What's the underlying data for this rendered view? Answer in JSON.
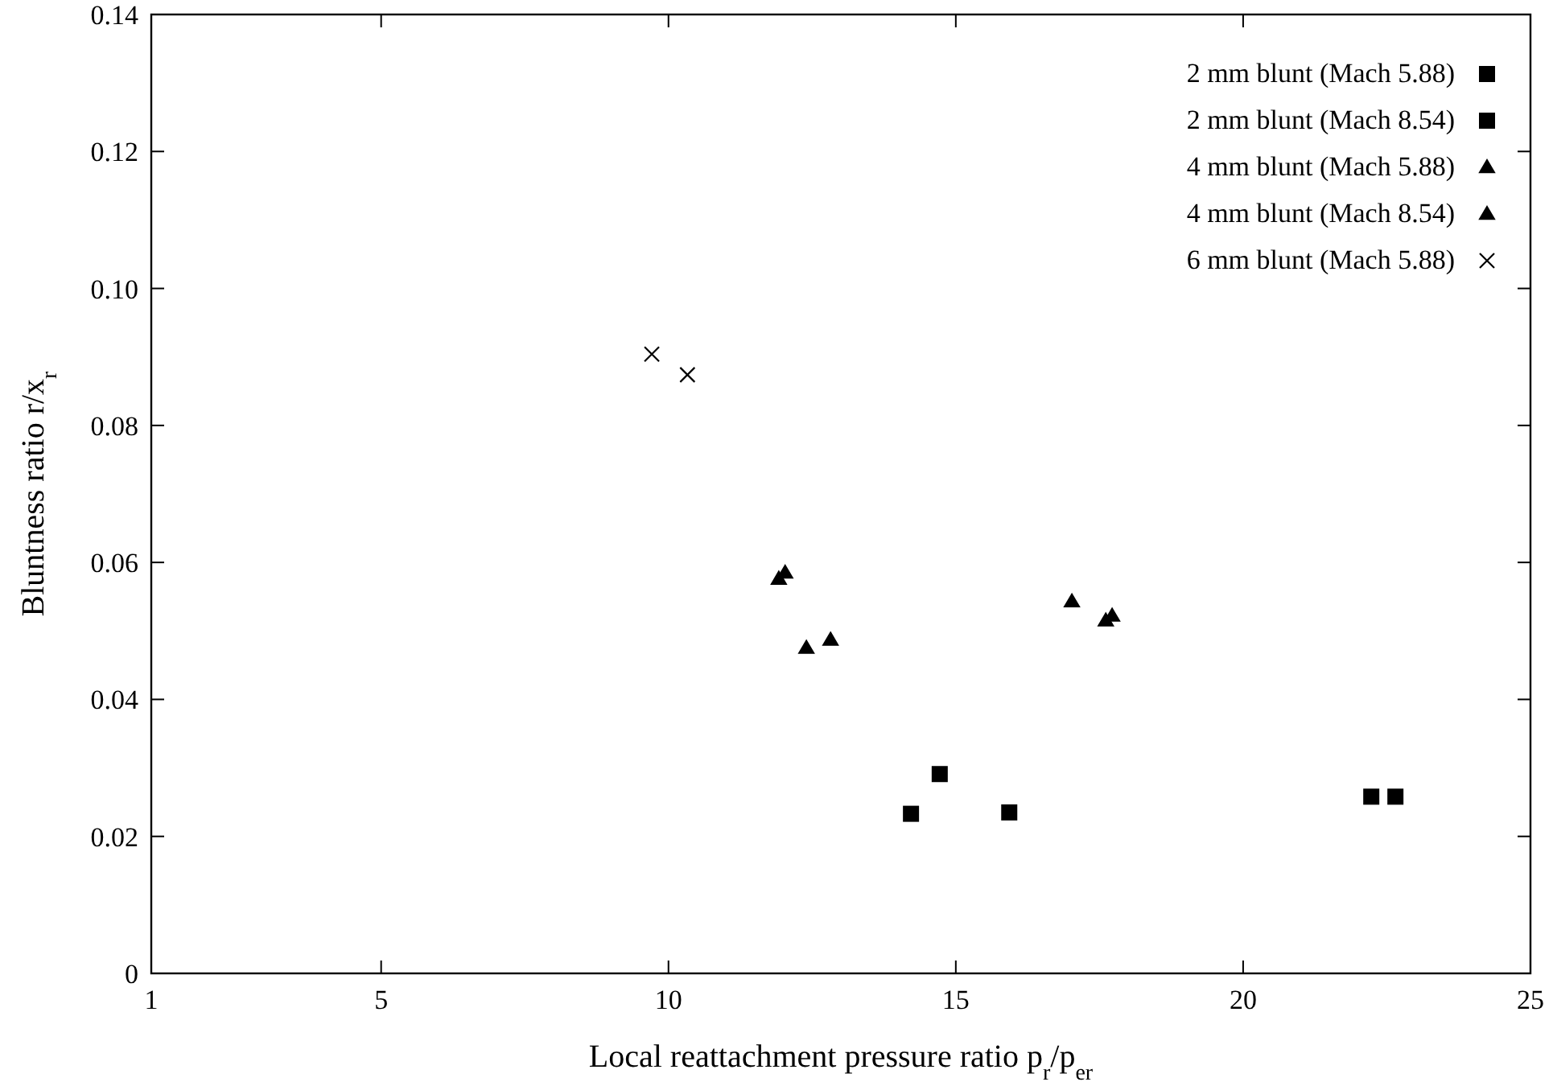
{
  "chart_data": {
    "type": "scatter",
    "xlabel": "Local reattachment pressure ratio p$_{r}$/p$_{er}$",
    "ylabel": "Bluntness ratio r/x$_{r}$",
    "xlim": [
      1,
      25
    ],
    "ylim": [
      0,
      0.14
    ],
    "xticks": [
      1,
      5,
      10,
      15,
      20,
      25
    ],
    "yticks": [
      {
        "value": 0,
        "label": "0"
      },
      {
        "value": 0.02,
        "label": "0.02"
      },
      {
        "value": 0.04,
        "label": "0.04"
      },
      {
        "value": 0.06,
        "label": "0.06"
      },
      {
        "value": 0.08,
        "label": "0.08"
      },
      {
        "value": 0.1,
        "label": "0.10"
      },
      {
        "value": 0.12,
        "label": "0.12"
      },
      {
        "value": 0.14,
        "label": "0.14"
      }
    ],
    "legend": "top right",
    "grid": false,
    "series": [
      {
        "name": "2 mm blunt (Mach 5.88)",
        "color": "#000000",
        "marker": "square",
        "x": [
          14.22,
          14.72,
          15.93
        ],
        "values": [
          0.0233,
          0.0291,
          0.0235
        ]
      },
      {
        "name": "2 mm blunt (Mach 8.54)",
        "color": "#000000",
        "marker": "square",
        "x": [
          22.23,
          22.65
        ],
        "values": [
          0.0258,
          0.0258
        ]
      },
      {
        "name": "4 mm blunt (Mach 5.88)",
        "color": "#000000",
        "marker": "triangle",
        "x": [
          11.92,
          12.03,
          12.4,
          12.82
        ],
        "values": [
          0.0576,
          0.0585,
          0.0475,
          0.0487
        ]
      },
      {
        "name": "4 mm blunt (Mach 8.54)",
        "color": "#000000",
        "marker": "triangle",
        "x": [
          17.02,
          17.61,
          17.72
        ],
        "values": [
          0.0543,
          0.0515,
          0.0522
        ]
      },
      {
        "name": "6 mm blunt (Mach 5.88)",
        "color": "#000000",
        "marker": "cross",
        "x": [
          9.71,
          10.33
        ],
        "values": [
          0.0904,
          0.0874
        ]
      }
    ]
  }
}
